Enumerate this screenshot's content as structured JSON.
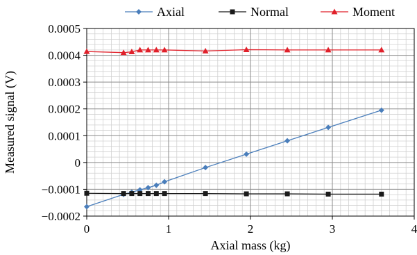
{
  "chart_data": {
    "type": "line",
    "xlabel": "Axial mass (kg)",
    "ylabel": "Measured signal (V)",
    "xlim": [
      0,
      4
    ],
    "ylim": [
      -0.0002,
      0.0005
    ],
    "x_ticks": [
      0,
      1,
      2,
      3,
      4
    ],
    "x_tick_labels": [
      "0",
      "1",
      "2",
      "3",
      "4"
    ],
    "y_ticks": [
      -0.0002,
      -0.0001,
      0,
      0.0001,
      0.0002,
      0.0003,
      0.0004,
      0.0005
    ],
    "y_tick_labels": [
      "−0.0002",
      "−0.0001",
      "0",
      "0.0001",
      "0.0002",
      "0.0003",
      "0.0004",
      "0.0005"
    ],
    "grid": true,
    "legend_position": "top",
    "x": [
      0,
      0.45,
      0.55,
      0.65,
      0.75,
      0.85,
      0.95,
      1.45,
      1.95,
      2.45,
      2.95,
      3.6
    ],
    "series": [
      {
        "name": "Axial",
        "color": "#4a7ebb",
        "marker": "diamond",
        "values": [
          -0.000165,
          -0.000119,
          -0.000111,
          -0.000102,
          -9.4e-05,
          -8.5e-05,
          -7.2e-05,
          -1.9e-05,
          3.1e-05,
          8.1e-05,
          0.000131,
          0.000195
        ]
      },
      {
        "name": "Normal",
        "color": "#1a1a1a",
        "marker": "square",
        "values": [
          -0.000115,
          -0.000116,
          -0.000116,
          -0.000116,
          -0.000116,
          -0.000116,
          -0.000116,
          -0.000116,
          -0.000117,
          -0.000117,
          -0.000118,
          -0.000118
        ]
      },
      {
        "name": "Moment",
        "color": "#e0202a",
        "marker": "triangle",
        "values": [
          0.000414,
          0.00041,
          0.000413,
          0.00042,
          0.00042,
          0.00042,
          0.00042,
          0.000416,
          0.000421,
          0.00042,
          0.00042,
          0.00042
        ]
      }
    ]
  }
}
